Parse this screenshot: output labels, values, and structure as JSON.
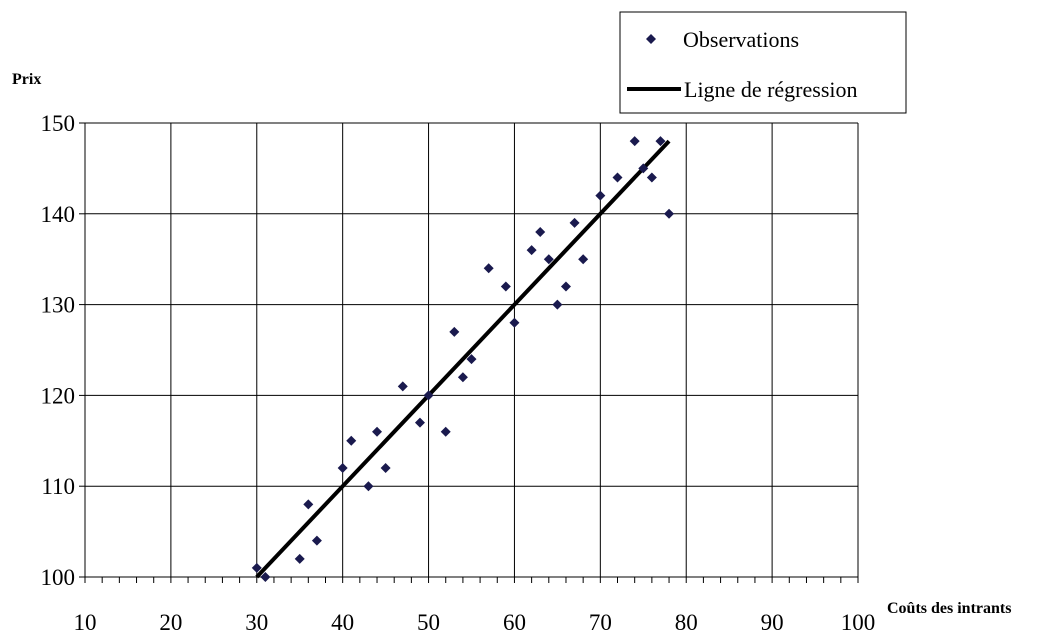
{
  "chart_data": {
    "type": "scatter",
    "title": "",
    "xlabel": "Coûts des intrants",
    "ylabel": "Prix",
    "xlim": [
      10,
      100
    ],
    "ylim": [
      100,
      150
    ],
    "x_ticks": [
      10,
      20,
      30,
      40,
      50,
      60,
      70,
      80,
      90,
      100
    ],
    "y_ticks": [
      100,
      110,
      120,
      130,
      140,
      150
    ],
    "grid": true,
    "legend_position": "top-right",
    "series": [
      {
        "name": "Observations",
        "kind": "scatter",
        "marker": "diamond",
        "color": "#1a1a4e",
        "points": [
          {
            "x": 30,
            "y": 101
          },
          {
            "x": 31,
            "y": 100
          },
          {
            "x": 35,
            "y": 102
          },
          {
            "x": 36,
            "y": 108
          },
          {
            "x": 37,
            "y": 104
          },
          {
            "x": 40,
            "y": 112
          },
          {
            "x": 41,
            "y": 115
          },
          {
            "x": 43,
            "y": 110
          },
          {
            "x": 44,
            "y": 116
          },
          {
            "x": 45,
            "y": 112
          },
          {
            "x": 47,
            "y": 121
          },
          {
            "x": 49,
            "y": 117
          },
          {
            "x": 50,
            "y": 120
          },
          {
            "x": 52,
            "y": 116
          },
          {
            "x": 53,
            "y": 127
          },
          {
            "x": 54,
            "y": 122
          },
          {
            "x": 55,
            "y": 124
          },
          {
            "x": 57,
            "y": 134
          },
          {
            "x": 59,
            "y": 132
          },
          {
            "x": 60,
            "y": 128
          },
          {
            "x": 62,
            "y": 136
          },
          {
            "x": 63,
            "y": 138
          },
          {
            "x": 64,
            "y": 135
          },
          {
            "x": 65,
            "y": 130
          },
          {
            "x": 66,
            "y": 132
          },
          {
            "x": 67,
            "y": 139
          },
          {
            "x": 68,
            "y": 135
          },
          {
            "x": 70,
            "y": 142
          },
          {
            "x": 72,
            "y": 144
          },
          {
            "x": 74,
            "y": 148
          },
          {
            "x": 75,
            "y": 145
          },
          {
            "x": 76,
            "y": 144
          },
          {
            "x": 77,
            "y": 148
          },
          {
            "x": 78,
            "y": 140
          }
        ]
      },
      {
        "name": "Ligne de régression",
        "kind": "line",
        "color": "#000000",
        "points": [
          {
            "x": 30,
            "y": 100
          },
          {
            "x": 78,
            "y": 148
          }
        ]
      }
    ]
  }
}
